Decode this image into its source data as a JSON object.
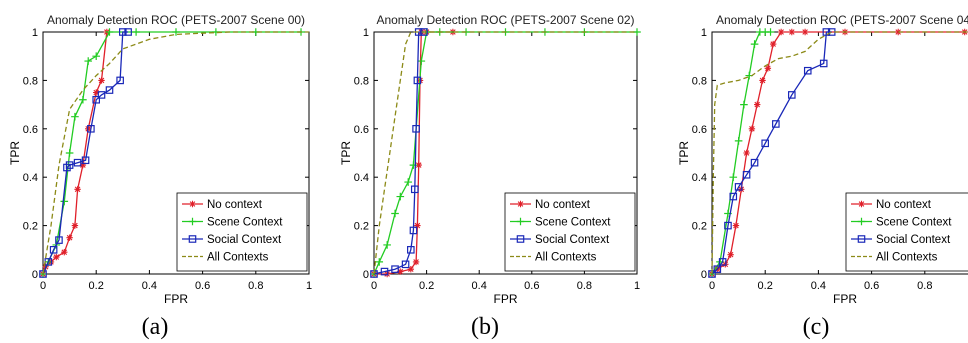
{
  "chart_data": [
    {
      "type": "line",
      "title": "Anomaly Detection ROC (PETS-2007 Scene 00)",
      "xlabel": "FPR",
      "ylabel": "TPR",
      "caption": "(a)",
      "xlim": [
        0,
        1
      ],
      "ylim": [
        0,
        1
      ],
      "xticks": [
        "0",
        "0.2",
        "0.4",
        "0.6",
        "0.8",
        "1"
      ],
      "yticks": [
        "0",
        "0.2",
        "0.4",
        "0.6",
        "0.8",
        "1"
      ],
      "grid": false,
      "legend_position": "bottom-right",
      "series": [
        {
          "name": "No context",
          "color": "#e0202a",
          "marker": "star",
          "dash": "solid",
          "x": [
            0,
            0.01,
            0.03,
            0.05,
            0.08,
            0.1,
            0.12,
            0.13,
            0.15,
            0.17,
            0.2,
            0.22,
            0.24
          ],
          "y": [
            0,
            0.03,
            0.05,
            0.07,
            0.09,
            0.15,
            0.2,
            0.35,
            0.45,
            0.6,
            0.75,
            0.8,
            1.0
          ]
        },
        {
          "name": "Scene Context",
          "color": "#22cc22",
          "marker": "plus",
          "dash": "solid",
          "x": [
            0,
            0.02,
            0.05,
            0.08,
            0.1,
            0.12,
            0.15,
            0.17,
            0.2,
            0.25,
            0.35,
            0.5,
            0.65,
            0.8,
            0.97
          ],
          "y": [
            0,
            0.05,
            0.12,
            0.3,
            0.5,
            0.65,
            0.72,
            0.88,
            0.9,
            1.0,
            1.0,
            1.0,
            1.0,
            1.0,
            1.0
          ]
        },
        {
          "name": "Social Context",
          "color": "#1a28b8",
          "marker": "square",
          "dash": "solid",
          "x": [
            0,
            0.02,
            0.04,
            0.06,
            0.09,
            0.1,
            0.13,
            0.16,
            0.18,
            0.2,
            0.22,
            0.25,
            0.29,
            0.3,
            0.32
          ],
          "y": [
            0,
            0.05,
            0.1,
            0.14,
            0.44,
            0.45,
            0.46,
            0.47,
            0.6,
            0.72,
            0.74,
            0.76,
            0.8,
            1.0,
            1.0
          ]
        },
        {
          "name": "All Contexts",
          "color": "#8c8a17",
          "marker": "none",
          "dash": "dashed",
          "x": [
            0,
            0.03,
            0.06,
            0.1,
            0.15,
            0.2,
            0.25,
            0.3,
            0.4,
            0.5,
            0.7,
            1.0
          ],
          "y": [
            0,
            0.2,
            0.45,
            0.68,
            0.76,
            0.82,
            0.87,
            0.93,
            0.97,
            0.99,
            1.0,
            1.0
          ]
        }
      ]
    },
    {
      "type": "line",
      "title": "Anomaly Detection ROC (PETS-2007 Scene 02)",
      "xlabel": "FPR",
      "ylabel": "TPR",
      "caption": "(b)",
      "xlim": [
        0,
        1
      ],
      "ylim": [
        0,
        1
      ],
      "xticks": [
        "0",
        "0.2",
        "0.4",
        "0.6",
        "0.8",
        "1"
      ],
      "yticks": [
        "0",
        "0.2",
        "0.4",
        "0.6",
        "0.8",
        "1"
      ],
      "grid": false,
      "legend_position": "bottom-right",
      "series": [
        {
          "name": "No context",
          "color": "#e0202a",
          "marker": "star",
          "dash": "solid",
          "x": [
            0,
            0.05,
            0.1,
            0.14,
            0.16,
            0.165,
            0.17,
            0.175,
            0.18,
            0.2,
            0.3
          ],
          "y": [
            0,
            0,
            0.01,
            0.02,
            0.05,
            0.2,
            0.45,
            0.8,
            1.0,
            1.0,
            1.0
          ]
        },
        {
          "name": "Scene Context",
          "color": "#22cc22",
          "marker": "plus",
          "dash": "solid",
          "x": [
            0,
            0.02,
            0.05,
            0.08,
            0.1,
            0.13,
            0.15,
            0.18,
            0.2,
            0.25,
            0.35,
            0.5,
            0.65,
            0.8,
            1.0
          ],
          "y": [
            0,
            0.05,
            0.12,
            0.25,
            0.32,
            0.38,
            0.45,
            0.88,
            1.0,
            1.0,
            1.0,
            1.0,
            1.0,
            1.0,
            1.0
          ]
        },
        {
          "name": "Social Context",
          "color": "#1a28b8",
          "marker": "square",
          "dash": "solid",
          "x": [
            0,
            0.04,
            0.08,
            0.12,
            0.14,
            0.15,
            0.155,
            0.16,
            0.165,
            0.17,
            0.19
          ],
          "y": [
            0,
            0.01,
            0.02,
            0.04,
            0.1,
            0.18,
            0.35,
            0.6,
            0.8,
            1.0,
            1.0
          ]
        },
        {
          "name": "All Contexts",
          "color": "#8c8a17",
          "marker": "none",
          "dash": "dashed",
          "x": [
            0,
            0.02,
            0.04,
            0.06,
            0.08,
            0.1,
            0.12,
            0.14,
            0.2,
            0.4,
            1.0
          ],
          "y": [
            0,
            0.2,
            0.35,
            0.5,
            0.65,
            0.8,
            0.95,
            1.0,
            1.0,
            1.0,
            1.0
          ]
        }
      ]
    },
    {
      "type": "line",
      "title": "Anomaly Detection ROC (PETS-2007 Scene 04)",
      "xlabel": "FPR",
      "ylabel": "TPR",
      "caption": "(c)",
      "xlim": [
        0,
        1
      ],
      "ylim": [
        0,
        1
      ],
      "xticks": [
        "0",
        "0.2",
        "0.4",
        "0.6",
        "0.8"
      ],
      "yticks": [
        "0",
        "0.2",
        "0.4",
        "0.6",
        "0.8",
        "1"
      ],
      "grid": false,
      "legend_position": "bottom-right",
      "series": [
        {
          "name": "No context",
          "color": "#e0202a",
          "marker": "star",
          "dash": "solid",
          "x": [
            0,
            0.02,
            0.05,
            0.07,
            0.09,
            0.11,
            0.13,
            0.15,
            0.17,
            0.19,
            0.21,
            0.23,
            0.26,
            0.3,
            0.35,
            0.5,
            0.7,
            0.95
          ],
          "y": [
            0,
            0.02,
            0.04,
            0.08,
            0.2,
            0.35,
            0.5,
            0.6,
            0.7,
            0.8,
            0.85,
            0.95,
            1.0,
            1.0,
            1.0,
            1.0,
            1.0,
            1.0
          ]
        },
        {
          "name": "Scene Context",
          "color": "#22cc22",
          "marker": "plus",
          "dash": "solid",
          "x": [
            0,
            0.03,
            0.06,
            0.08,
            0.1,
            0.12,
            0.14,
            0.16,
            0.18,
            0.2,
            0.22
          ],
          "y": [
            0,
            0.05,
            0.25,
            0.4,
            0.55,
            0.7,
            0.82,
            0.95,
            1.0,
            1.0,
            1.0
          ]
        },
        {
          "name": "Social Context",
          "color": "#1a28b8",
          "marker": "square",
          "dash": "solid",
          "x": [
            0,
            0.02,
            0.04,
            0.06,
            0.08,
            0.1,
            0.13,
            0.16,
            0.2,
            0.24,
            0.3,
            0.36,
            0.42,
            0.43,
            0.45
          ],
          "y": [
            0,
            0.02,
            0.05,
            0.2,
            0.32,
            0.36,
            0.41,
            0.46,
            0.54,
            0.62,
            0.74,
            0.84,
            0.87,
            1.0,
            1.0
          ]
        },
        {
          "name": "All Contexts",
          "color": "#8c8a17",
          "marker": "none",
          "dash": "dashed",
          "x": [
            0,
            0.005,
            0.01,
            0.02,
            0.05,
            0.1,
            0.15,
            0.2,
            0.25,
            0.3,
            0.35,
            0.4,
            0.45,
            0.6,
            0.8,
            1.0
          ],
          "y": [
            0,
            0.4,
            0.7,
            0.78,
            0.79,
            0.8,
            0.82,
            0.86,
            0.89,
            0.9,
            0.92,
            0.97,
            1.0,
            1.0,
            1.0,
            1.0
          ]
        }
      ]
    }
  ]
}
